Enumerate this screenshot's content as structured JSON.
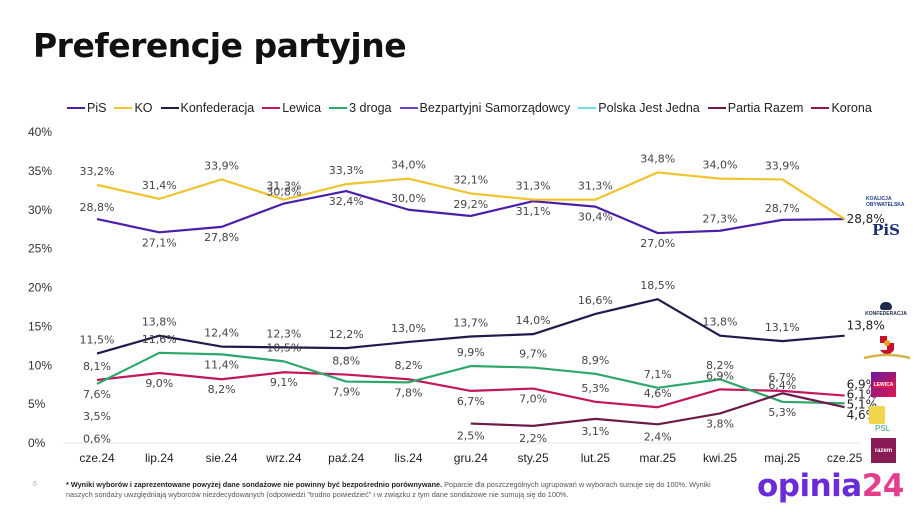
{
  "header": {
    "title": "Preferencje partyjne"
  },
  "legend": [
    {
      "name": "PiS",
      "color": "#4b1fa8"
    },
    {
      "name": "KO",
      "color": "#f0c330"
    },
    {
      "name": "Konfederacja",
      "color": "#1f1b4d"
    },
    {
      "name": "Lewica",
      "color": "#c2185b"
    },
    {
      "name": "3 droga",
      "color": "#2ea86a"
    },
    {
      "name": "Bezpartyjni Samorządowcy",
      "color": "#6a3fd1"
    },
    {
      "name": "Polska Jest Jedna",
      "color": "#6ee0e6"
    },
    {
      "name": "Partia Razem",
      "color": "#6b1a4a"
    },
    {
      "name": "Korona",
      "color": "#8c1b4f"
    }
  ],
  "chart_data": {
    "type": "line",
    "title": "Preferencje partyjne",
    "xlabel": "",
    "ylabel": "",
    "ylim": [
      0,
      40
    ],
    "y_ticks": [
      "0%",
      "5%",
      "10%",
      "15%",
      "20%",
      "25%",
      "30%",
      "35%",
      "40%"
    ],
    "grid": false,
    "legend_position": "top",
    "categories": [
      "cze.24",
      "lip.24",
      "sie.24",
      "wrz.24",
      "paź.24",
      "lis.24",
      "gru.24",
      "sty.25",
      "lut.25",
      "mar.25",
      "kwi.25",
      "maj.25",
      "cze.25"
    ],
    "series": [
      {
        "name": "PiS",
        "color": "#4b1fa8",
        "values": [
          28.8,
          27.1,
          27.8,
          30.8,
          32.4,
          30.0,
          29.2,
          31.1,
          30.4,
          27.0,
          27.3,
          28.7,
          28.8
        ]
      },
      {
        "name": "KO",
        "color": "#f0c330",
        "values": [
          33.2,
          31.4,
          33.9,
          31.3,
          33.3,
          34.0,
          32.1,
          31.3,
          31.3,
          34.8,
          34.0,
          33.9,
          28.8
        ]
      },
      {
        "name": "Konfederacja",
        "color": "#1f1b4d",
        "values": [
          11.5,
          13.8,
          12.4,
          12.3,
          12.2,
          13.0,
          13.7,
          14.0,
          16.6,
          18.5,
          13.8,
          13.1,
          13.8
        ]
      },
      {
        "name": "Lewica",
        "color": "#c2185b",
        "values": [
          8.1,
          9.0,
          8.2,
          9.1,
          8.8,
          8.2,
          6.7,
          7.0,
          5.3,
          4.6,
          6.9,
          6.7,
          6.1
        ]
      },
      {
        "name": "3 droga",
        "color": "#2ea86a",
        "values": [
          7.6,
          11.6,
          11.4,
          10.5,
          7.9,
          7.8,
          9.9,
          9.7,
          8.9,
          7.1,
          8.2,
          5.3,
          5.1
        ]
      },
      {
        "name": "Bezpartyjni Samorządowcy",
        "color": "#6a3fd1",
        "values": [
          3.5,
          null,
          null,
          null,
          null,
          null,
          null,
          null,
          null,
          null,
          null,
          null,
          null
        ]
      },
      {
        "name": "Polska Jest Jedna",
        "color": "#6ee0e6",
        "values": [
          0.6,
          null,
          null,
          null,
          null,
          null,
          null,
          null,
          null,
          null,
          null,
          null,
          null
        ]
      },
      {
        "name": "Partia Razem",
        "color": "#6b1a4a",
        "values": [
          null,
          null,
          null,
          null,
          null,
          null,
          2.5,
          2.2,
          3.1,
          2.4,
          3.8,
          6.4,
          4.6
        ]
      },
      {
        "name": "Korona",
        "color": "#8c1b4f",
        "values": [
          null,
          null,
          null,
          null,
          null,
          null,
          null,
          null,
          null,
          null,
          null,
          null,
          6.9
        ]
      }
    ],
    "value_labels": {
      "PiS": [
        "28,8%",
        "27,1%",
        "27,8%",
        "30,8%",
        "32,4%",
        "30,0%",
        "29,2%",
        "31,1%",
        "30,4%",
        "27,0%",
        "27,3%",
        "28,7%",
        "28,8%"
      ],
      "KO": [
        "33,2%",
        "31,4%",
        "33,9%",
        "31,3%",
        "33,3%",
        "34,0%",
        "32,1%",
        "31,3%",
        "31,3%",
        "34,8%",
        "34,0%",
        "33,9%",
        ""
      ],
      "Konfederacja": [
        "11,5%",
        "13,8%",
        "12,4%",
        "12,3%",
        "12,2%",
        "13,0%",
        "13,7%",
        "14,0%",
        "16,6%",
        "18,5%",
        "13,8%",
        "13,1%",
        "13,8%"
      ],
      "Lewica": [
        "8,1%",
        "9,0%",
        "8,2%",
        "9,1%",
        "8,8%",
        "8,2%",
        "6,7%",
        "7,0%",
        "5,3%",
        "4,6%",
        "6,9%",
        "6,7%",
        "6,1%"
      ],
      "3 droga": [
        "7,6%",
        "11,6%",
        "11,4%",
        "10,5%",
        "7,9%",
        "7,8%",
        "9,9%",
        "9,7%",
        "8,9%",
        "7,1%",
        "8,2%",
        "5,3%",
        "5,1%"
      ],
      "Bezpartyjni Samorządowcy": [
        "3,5%"
      ],
      "Polska Jest Jedna": [
        "0,6%"
      ],
      "Partia Razem": [
        "",
        "",
        "",
        "",
        "",
        "",
        "2,5%",
        "2,2%",
        "3,1%",
        "2,4%",
        "3,8%",
        "6,4%",
        "4,6%"
      ],
      "Korona": [
        "",
        "",
        "",
        "",
        "",
        "",
        "",
        "",
        "",
        "",
        "",
        "",
        "6,9%"
      ]
    }
  },
  "side_logos": [
    {
      "name": "Koalicja Obywatelska",
      "text": "KOALICJA OBYWATELSKA"
    },
    {
      "name": "PiS",
      "text": "PiS"
    },
    {
      "name": "Konfederacja",
      "text": "KONFEDERACJA"
    },
    {
      "name": "Korona",
      "text": ""
    },
    {
      "name": "Lewica",
      "text": "LEWICA"
    },
    {
      "name": "3 droga PSL",
      "text": "PSL"
    },
    {
      "name": "Razem",
      "text": "razem"
    }
  ],
  "footer": {
    "page_number": "6",
    "note_bold": "* Wyniki wyborów i zaprezentowane powyżej  dane sondażowe nie powinny być bezpośrednio porównywane.",
    "note_rest": " Poparcie dla poszczególnych ugrupowań w wyborach sumuje się do 100%. Wyniki naszych sondaży uwzględniają wyborców niezdecydowanych (odpowiedzi \"trudno powiedzieć\" i w związku z tym dane sondażowe nie sumują się do 100%.",
    "brand_a": "opinia",
    "brand_b": "24"
  }
}
